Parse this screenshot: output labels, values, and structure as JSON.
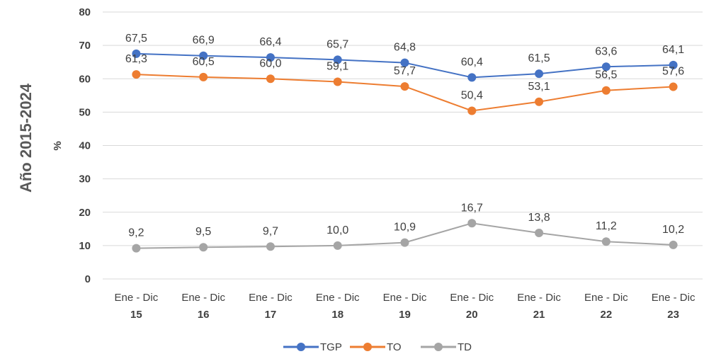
{
  "chart_data": {
    "type": "line",
    "categories": [
      "15",
      "16",
      "17",
      "18",
      "19",
      "20",
      "21",
      "22",
      "23"
    ],
    "category_prefix": "Ene - Dic",
    "series": [
      {
        "name": "TGP",
        "color": "#4472c4",
        "values": [
          67.5,
          66.9,
          66.4,
          65.7,
          64.8,
          60.4,
          61.5,
          63.6,
          64.1
        ],
        "labels": [
          "67,5",
          "66,9",
          "66,4",
          "65,7",
          "64,8",
          "60,4",
          "61,5",
          "63,6",
          "64,1"
        ]
      },
      {
        "name": "TO",
        "color": "#ed7d31",
        "values": [
          61.3,
          60.5,
          60.0,
          59.1,
          57.7,
          50.4,
          53.1,
          56.5,
          57.6
        ],
        "labels": [
          "61,3",
          "60,5",
          "60,0",
          "59,1",
          "57,7",
          "50,4",
          "53,1",
          "56,5",
          "57,6"
        ]
      },
      {
        "name": "TD",
        "color": "#a5a5a5",
        "values": [
          9.2,
          9.5,
          9.7,
          10.0,
          10.9,
          16.7,
          13.8,
          11.2,
          10.2
        ],
        "labels": [
          "9,2",
          "9,5",
          "9,7",
          "10,0",
          "10,9",
          "16,7",
          "13,8",
          "11,2",
          "10,2"
        ]
      }
    ],
    "yticks": [
      0,
      10,
      20,
      30,
      40,
      50,
      60,
      70,
      80
    ],
    "ylim": [
      0,
      80
    ],
    "ylabel": "%",
    "side_title": "Año 2015-2024",
    "grid": true,
    "legend_position": "bottom"
  }
}
